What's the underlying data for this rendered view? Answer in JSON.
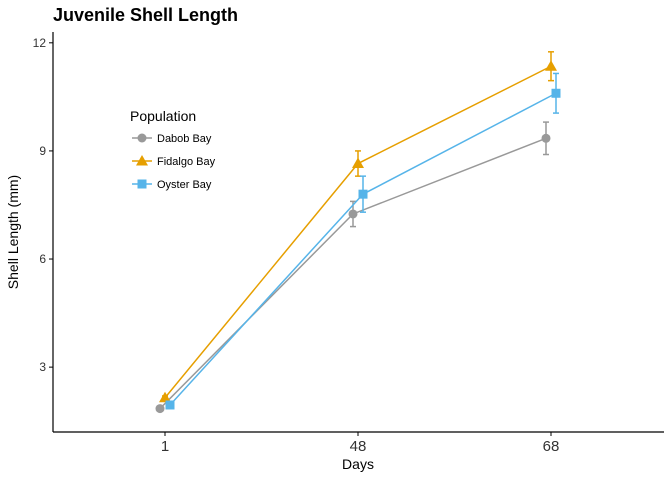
{
  "chart_data": {
    "type": "line",
    "title": "Juvenile Shell Length",
    "xlabel": "Days",
    "ylabel": "Shell Length (mm)",
    "categories": [
      "1",
      "48",
      "68"
    ],
    "ylim": [
      1.2,
      12.3
    ],
    "yticks": [
      3,
      6,
      9,
      12
    ],
    "grid": false,
    "legend": {
      "title": "Population",
      "placement": "upper-left inside"
    },
    "series": [
      {
        "name": "Dabob Bay",
        "color": "#999999",
        "marker": "circle",
        "values": [
          1.85,
          7.25,
          9.35
        ],
        "errors": [
          0.05,
          0.35,
          0.45
        ]
      },
      {
        "name": "Fidalgo Bay",
        "color": "#E69F00",
        "marker": "triangle",
        "values": [
          2.15,
          8.65,
          11.35
        ],
        "errors": [
          0.05,
          0.35,
          0.4
        ]
      },
      {
        "name": "Oyster Bay",
        "color": "#56B4E9",
        "marker": "square",
        "values": [
          1.95,
          7.8,
          10.6
        ],
        "errors": [
          0.05,
          0.5,
          0.55
        ]
      }
    ]
  }
}
